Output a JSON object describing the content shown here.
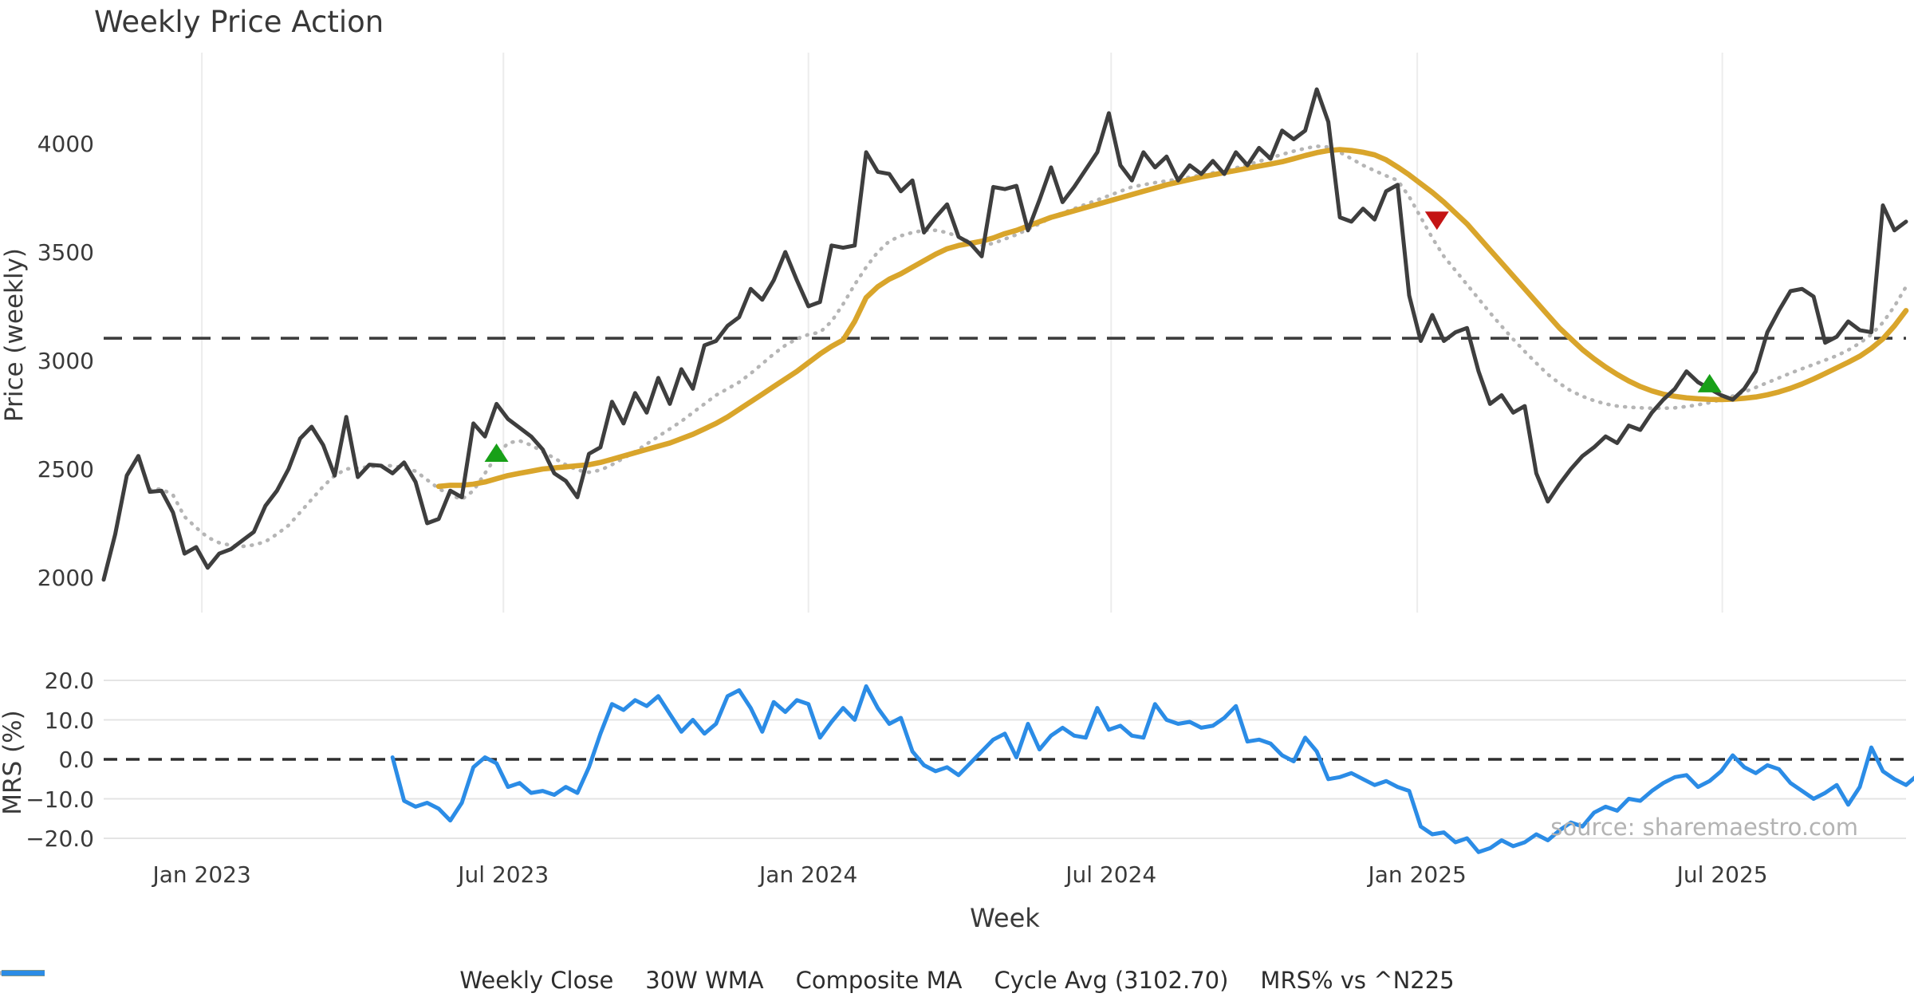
{
  "title": "Weekly Price Action",
  "source_note": "source: sharemaestro.com",
  "colors": {
    "weekly_close": "#3E3E3E",
    "wma_30w": "#D9A52B",
    "composite_ma": "#B5B5B5",
    "cycle_avg": "#3C3C3C",
    "mrs_line": "#2B8CE6",
    "marker_buy": "#18A018",
    "marker_sell": "#C41414",
    "grid": "#ECECEC",
    "grid_horizontal": "#E4E4E4",
    "text": "#3A3A3A",
    "source_text": "#B3B3B3"
  },
  "x_axis": {
    "label": "Week",
    "tick_labels": [
      "Jan 2023",
      "Jul 2023",
      "Jan 2024",
      "Jul 2024",
      "Jan 2025",
      "Jul 2025"
    ],
    "tick_weeks": [
      8.5,
      34.6,
      61.0,
      87.2,
      113.7,
      140.1
    ],
    "weeks_total": 156
  },
  "legend": [
    {
      "label": "Weekly Close",
      "color": "#3E3E3E",
      "style": "solid"
    },
    {
      "label": "30W WMA",
      "color": "#D9A52B",
      "style": "solid"
    },
    {
      "label": "Composite MA",
      "color": "#B5B5B5",
      "style": "dotted"
    },
    {
      "label": "Cycle Avg (3102.70)",
      "color": "#3C3C3C",
      "style": "dashed"
    },
    {
      "label": "MRS% vs ^N225",
      "color": "#2B8CE6",
      "style": "solid"
    }
  ],
  "chart_data": [
    {
      "type": "line",
      "panel": "price",
      "title": "Weekly Price Action",
      "xlabel": "Week",
      "ylabel": "Price (weekly)",
      "ylim": [
        1840,
        4420
      ],
      "ytick_values": [
        2000,
        2500,
        3000,
        3500,
        4000
      ],
      "ytick_labels": [
        "2000",
        "2500",
        "3000",
        "3500",
        "4000"
      ],
      "grid": "vertical-only",
      "cycle_avg": 3102.7,
      "series": [
        {
          "name": "Weekly Close",
          "style": "solid",
          "color": "#3E3E3E",
          "start_week": 0,
          "values": [
            1990,
            2200,
            2470,
            2560,
            2395,
            2400,
            2300,
            2110,
            2140,
            2045,
            2110,
            2130,
            2170,
            2210,
            2330,
            2400,
            2500,
            2640,
            2695,
            2610,
            2470,
            2740,
            2463,
            2520,
            2515,
            2480,
            2530,
            2440,
            2250,
            2270,
            2400,
            2370,
            2710,
            2650,
            2800,
            2730,
            2690,
            2650,
            2590,
            2480,
            2445,
            2370,
            2570,
            2600,
            2810,
            2710,
            2850,
            2760,
            2920,
            2800,
            2960,
            2870,
            3070,
            3090,
            3160,
            3200,
            3330,
            3280,
            3370,
            3500,
            3370,
            3250,
            3270,
            3530,
            3520,
            3530,
            3960,
            3870,
            3860,
            3780,
            3830,
            3590,
            3660,
            3720,
            3570,
            3540,
            3480,
            3800,
            3790,
            3805,
            3600,
            3740,
            3890,
            3730,
            3800,
            3880,
            3960,
            4140,
            3900,
            3830,
            3960,
            3890,
            3940,
            3830,
            3900,
            3860,
            3920,
            3860,
            3960,
            3900,
            3980,
            3930,
            4060,
            4020,
            4060,
            4250,
            4100,
            3660,
            3640,
            3700,
            3650,
            3780,
            3810,
            3300,
            3090,
            3210,
            3090,
            3130,
            3150,
            2950,
            2800,
            2840,
            2760,
            2790,
            2480,
            2350,
            2430,
            2500,
            2560,
            2600,
            2650,
            2620,
            2700,
            2680,
            2760,
            2820,
            2870,
            2950,
            2900,
            2870,
            2840,
            2820,
            2870,
            2950,
            3130,
            3230,
            3320,
            3330,
            3295,
            3082,
            3110,
            3180,
            3140,
            3130,
            3715,
            3600,
            3640
          ]
        },
        {
          "name": "30W WMA",
          "style": "solid",
          "color": "#D9A52B",
          "start_week": 29,
          "values": [
            2420,
            2425,
            2425,
            2430,
            2440,
            2455,
            2470,
            2480,
            2490,
            2500,
            2505,
            2510,
            2515,
            2520,
            2530,
            2545,
            2560,
            2575,
            2590,
            2605,
            2620,
            2640,
            2660,
            2685,
            2710,
            2740,
            2775,
            2810,
            2845,
            2880,
            2915,
            2950,
            2990,
            3030,
            3065,
            3095,
            3180,
            3290,
            3340,
            3375,
            3400,
            3430,
            3460,
            3490,
            3515,
            3530,
            3540,
            3550,
            3565,
            3585,
            3600,
            3620,
            3640,
            3660,
            3675,
            3690,
            3705,
            3720,
            3735,
            3750,
            3765,
            3780,
            3795,
            3810,
            3822,
            3834,
            3846,
            3856,
            3866,
            3876,
            3886,
            3896,
            3906,
            3916,
            3930,
            3945,
            3958,
            3968,
            3972,
            3968,
            3960,
            3948,
            3925,
            3892,
            3856,
            3815,
            3775,
            3730,
            3680,
            3630,
            3570,
            3510,
            3450,
            3390,
            3330,
            3270,
            3210,
            3150,
            3100,
            3050,
            3008,
            2970,
            2936,
            2906,
            2880,
            2860,
            2845,
            2835,
            2828,
            2824,
            2821,
            2820,
            2822,
            2826,
            2832,
            2842,
            2855,
            2872,
            2892,
            2915,
            2940,
            2966,
            2992,
            3020,
            3056,
            3100,
            3160,
            3230
          ]
        },
        {
          "name": "Composite MA",
          "style": "dotted",
          "color": "#B5B5B5",
          "start_week": 4,
          "values": [
            2405,
            2408,
            2380,
            2280,
            2230,
            2185,
            2160,
            2148,
            2143,
            2150,
            2165,
            2200,
            2240,
            2300,
            2360,
            2420,
            2470,
            2500,
            2505,
            2510,
            2515,
            2515,
            2505,
            2490,
            2450,
            2410,
            2380,
            2360,
            2400,
            2480,
            2560,
            2620,
            2630,
            2610,
            2580,
            2550,
            2520,
            2495,
            2485,
            2495,
            2520,
            2550,
            2580,
            2615,
            2650,
            2685,
            2720,
            2760,
            2800,
            2840,
            2870,
            2900,
            2940,
            2985,
            3030,
            3070,
            3100,
            3120,
            3130,
            3180,
            3260,
            3350,
            3430,
            3500,
            3550,
            3575,
            3590,
            3600,
            3600,
            3590,
            3570,
            3545,
            3530,
            3540,
            3560,
            3580,
            3605,
            3630,
            3660,
            3680,
            3700,
            3720,
            3740,
            3760,
            3780,
            3800,
            3810,
            3820,
            3828,
            3836,
            3845,
            3855,
            3865,
            3875,
            3888,
            3902,
            3918,
            3934,
            3950,
            3965,
            3978,
            3988,
            3984,
            3960,
            3930,
            3900,
            3875,
            3852,
            3830,
            3755,
            3660,
            3565,
            3480,
            3415,
            3350,
            3285,
            3220,
            3158,
            3098,
            3042,
            2988,
            2936,
            2895,
            2860,
            2835,
            2815,
            2800,
            2790,
            2785,
            2782,
            2780,
            2780,
            2782,
            2788,
            2796,
            2806,
            2820,
            2836,
            2855,
            2876,
            2898,
            2920,
            2942,
            2962,
            2982,
            3002,
            3022,
            3048,
            3080,
            3120,
            3175,
            3250,
            3340
          ]
        }
      ],
      "markers": [
        {
          "week": 34.0,
          "price": 2570,
          "shape": "triangle-up",
          "color": "#18A018",
          "meaning": "buy-signal"
        },
        {
          "week": 115.4,
          "price": 3650,
          "shape": "triangle-down",
          "color": "#C41414",
          "meaning": "sell-signal"
        },
        {
          "week": 139.0,
          "price": 2890,
          "shape": "triangle-up",
          "color": "#18A018",
          "meaning": "buy-signal"
        }
      ]
    },
    {
      "type": "line",
      "panel": "mrs",
      "ylabel": "MRS (%)",
      "ylim": [
        -24.8,
        24.2
      ],
      "ytick_values": [
        20,
        10,
        0,
        -10,
        -20
      ],
      "ytick_labels": [
        "20.0",
        "10.0",
        "0.0",
        "−10.0",
        "−20.0"
      ],
      "grid": "horizontal-only",
      "zero_line": "dashed",
      "series": [
        {
          "name": "MRS% vs ^N225",
          "style": "solid",
          "color": "#2B8CE6",
          "start_week": 25,
          "values": [
            0.5,
            -10.5,
            -12,
            -11,
            -12.5,
            -15.5,
            -11,
            -2,
            0.5,
            -1,
            -7,
            -6,
            -8.5,
            -8,
            -9,
            -7,
            -8.5,
            -2,
            6.5,
            14,
            12.5,
            15,
            13.5,
            16,
            11.5,
            7,
            10,
            6.5,
            9,
            16,
            17.5,
            13,
            7,
            14.5,
            12,
            15,
            14,
            5.5,
            9.5,
            13,
            10,
            18.5,
            13,
            9,
            10.5,
            2,
            -1.5,
            -3,
            -2,
            -4,
            -1,
            2,
            5,
            6.5,
            0.5,
            9,
            2.5,
            6,
            8,
            6,
            5.5,
            13,
            7.5,
            8.5,
            6,
            5.5,
            14,
            10,
            9,
            9.5,
            8,
            8.5,
            10.5,
            13.5,
            4.5,
            5,
            4,
            1,
            -0.5,
            5.5,
            2,
            -5,
            -4.5,
            -3.5,
            -5,
            -6.5,
            -5.5,
            -7,
            -8,
            -17,
            -19,
            -18.5,
            -21,
            -20,
            -23.5,
            -22.5,
            -20.5,
            -22,
            -21,
            -19,
            -20.5,
            -18,
            -16,
            -17,
            -13.5,
            -12,
            -13,
            -10,
            -10.5,
            -8,
            -6,
            -4.5,
            -4,
            -7,
            -5.5,
            -3,
            1,
            -2,
            -3.5,
            -1.5,
            -2.5,
            -6,
            -8,
            -10,
            -8.5,
            -6.5,
            -11.5,
            -7,
            3,
            -3,
            -5,
            -6.5,
            -4
          ]
        }
      ]
    }
  ]
}
